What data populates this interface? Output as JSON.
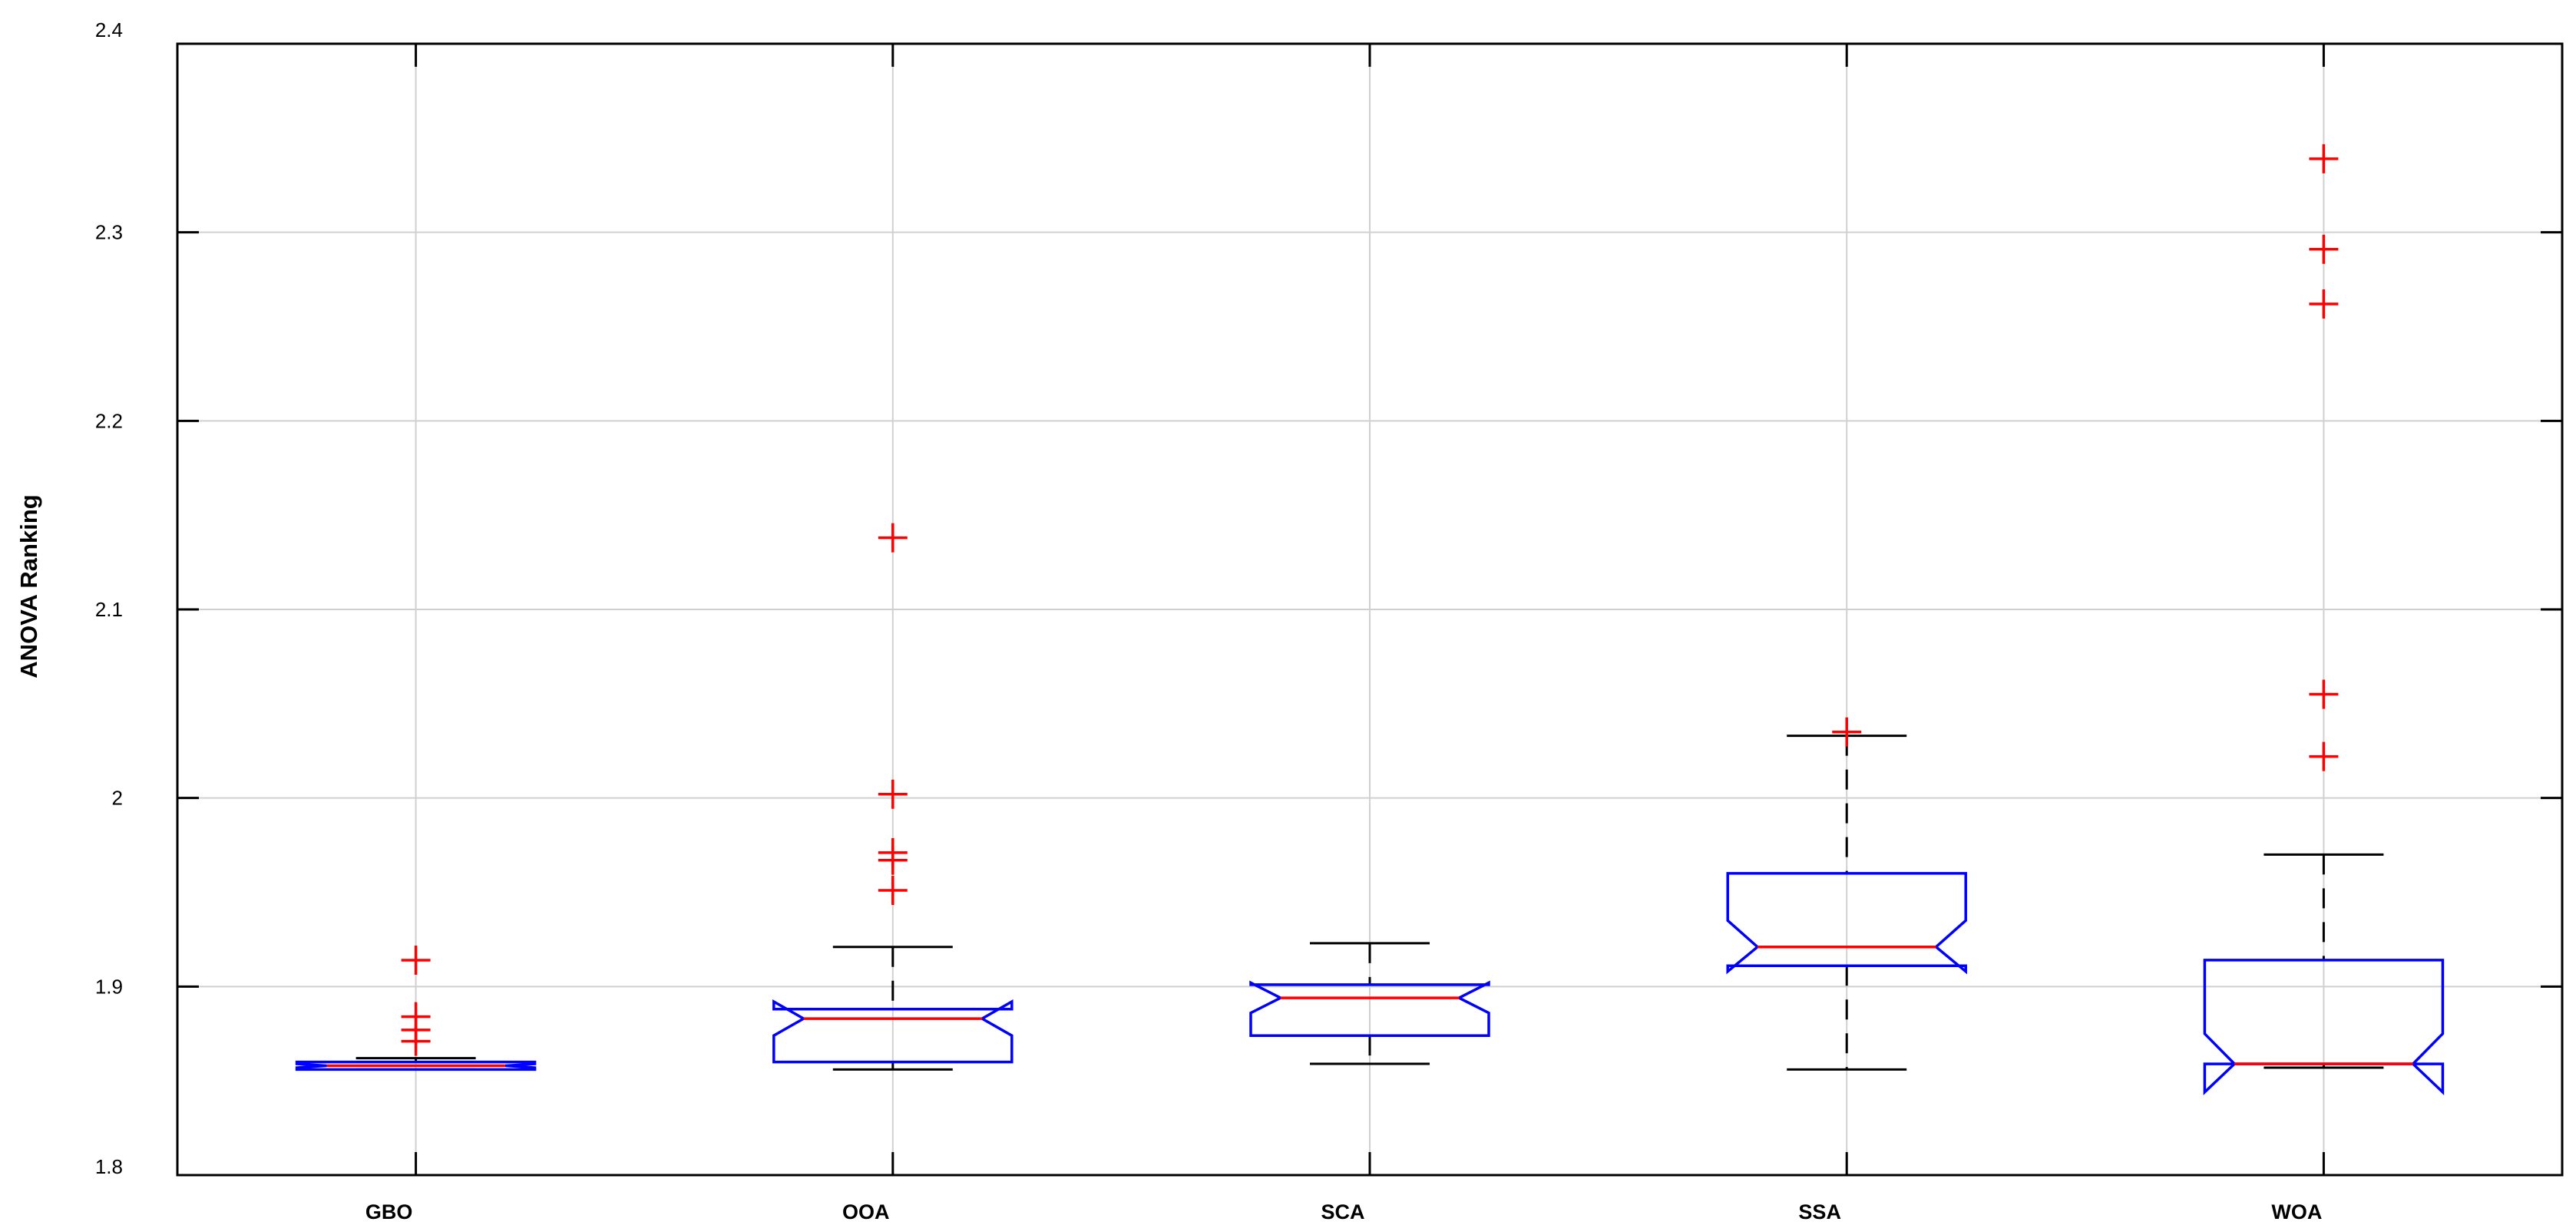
{
  "chart_data": {
    "type": "boxplot",
    "title": "",
    "xlabel": "",
    "ylabel": "ANOVA Ranking",
    "ylim": [
      1.8,
      2.4
    ],
    "yticks": [
      "1.8",
      "1.9",
      "2",
      "2.1",
      "2.2",
      "2.3",
      "2.4"
    ],
    "grid": true,
    "notched": true,
    "colors": {
      "box": "#0000ff",
      "median": "#ff0000",
      "whisker": "#000000",
      "outlier": "#ff0000",
      "grid": "#d0d0d0"
    },
    "categories": [
      "GBO",
      "OOA",
      "SCA",
      "SSA",
      "WOA"
    ],
    "boxes": [
      {
        "name": "GBO",
        "whisker_low": 1.856,
        "q1": 1.856,
        "notch_low": 1.857,
        "median": 1.858,
        "notch_high": 1.859,
        "q3": 1.86,
        "whisker_high": 1.862,
        "outliers": [
          1.871,
          1.877,
          1.884,
          1.914
        ]
      },
      {
        "name": "OOA",
        "whisker_low": 1.856,
        "q1": 1.86,
        "notch_low": 1.874,
        "median": 1.883,
        "notch_high": 1.892,
        "q3": 1.888,
        "whisker_high": 1.921,
        "outliers": [
          1.951,
          1.967,
          1.971,
          2.002,
          2.138
        ]
      },
      {
        "name": "SCA",
        "whisker_low": 1.859,
        "q1": 1.874,
        "notch_low": 1.886,
        "median": 1.894,
        "notch_high": 1.902,
        "q3": 1.901,
        "whisker_high": 1.923,
        "outliers": []
      },
      {
        "name": "SSA",
        "whisker_low": 1.856,
        "q1": 1.911,
        "notch_low": 1.908,
        "median": 1.921,
        "notch_high": 1.935,
        "q3": 1.96,
        "whisker_high": 2.033,
        "outliers": [
          2.035
        ]
      },
      {
        "name": "WOA",
        "whisker_low": 1.857,
        "q1": 1.859,
        "notch_low": 1.844,
        "median": 1.859,
        "notch_high": 1.875,
        "q3": 1.914,
        "whisker_high": 1.97,
        "outliers": [
          2.022,
          2.055,
          2.262,
          2.291,
          2.339
        ]
      }
    ]
  }
}
